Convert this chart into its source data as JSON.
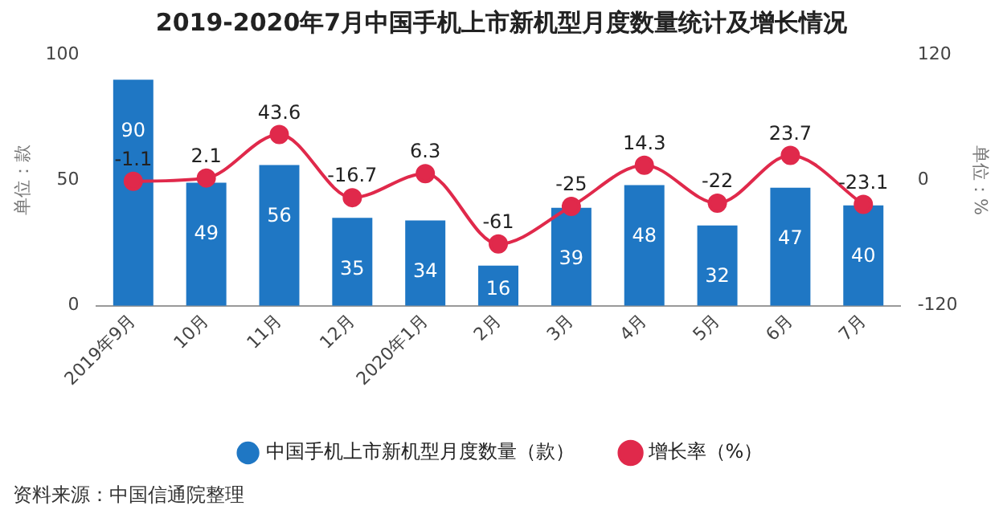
{
  "chart_data": {
    "type": "bar",
    "title": "2019-2020年7月中国手机上市新机型月度数量统计及增长情况",
    "ylabel": "单位：款",
    "y2label": "单位：%",
    "categories": [
      "2019年9月",
      "10月",
      "11月",
      "12月",
      "2020年1月",
      "2月",
      "3月",
      "4月",
      "5月",
      "6月",
      "7月"
    ],
    "series": [
      {
        "name": "中国手机上市新机型月度数量（款）",
        "color": "#1f77c4",
        "values": [
          90,
          49,
          56,
          35,
          34,
          16,
          39,
          48,
          32,
          47,
          40
        ]
      },
      {
        "name": "增长率（%）",
        "type": "line",
        "axis": "y2",
        "color": "#e0294b",
        "marker": "circle",
        "values": [
          -1.1,
          2.1,
          43.6,
          -16.7,
          6.3,
          -61,
          -25,
          14.3,
          -22,
          23.7,
          -23.1
        ]
      }
    ],
    "ylim": [
      0,
      100
    ],
    "yticks": [
      0,
      50,
      100
    ],
    "y2lim": [
      -120,
      120
    ],
    "y2ticks": [
      -120,
      0,
      120
    ],
    "grid": false,
    "legend": "bottom",
    "data_labels": true,
    "annotations": [
      "资料来源：中国信通院整理"
    ]
  }
}
